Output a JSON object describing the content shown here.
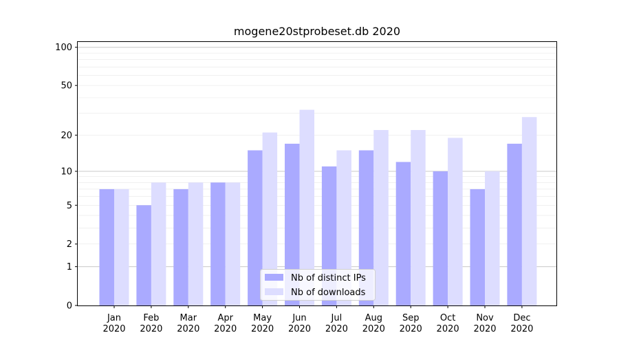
{
  "chart_data": {
    "type": "bar",
    "title": "mogene20stprobeset.db 2020",
    "xlabel": "",
    "ylabel": "",
    "yscale": "log1p",
    "ylim": [
      0,
      110
    ],
    "yticks": [
      0,
      1,
      2,
      5,
      10,
      20,
      50,
      100
    ],
    "grid": true,
    "legend": "bottom-center",
    "categories": [
      {
        "month": "Jan",
        "year": "2020"
      },
      {
        "month": "Feb",
        "year": "2020"
      },
      {
        "month": "Mar",
        "year": "2020"
      },
      {
        "month": "Apr",
        "year": "2020"
      },
      {
        "month": "May",
        "year": "2020"
      },
      {
        "month": "Jun",
        "year": "2020"
      },
      {
        "month": "Jul",
        "year": "2020"
      },
      {
        "month": "Aug",
        "year": "2020"
      },
      {
        "month": "Sep",
        "year": "2020"
      },
      {
        "month": "Oct",
        "year": "2020"
      },
      {
        "month": "Nov",
        "year": "2020"
      },
      {
        "month": "Dec",
        "year": "2020"
      }
    ],
    "series": [
      {
        "name": "Nb of distinct IPs",
        "color": "#aaaaff",
        "values": [
          7,
          5,
          7,
          8,
          15,
          17,
          11,
          15,
          12,
          10,
          7,
          17
        ]
      },
      {
        "name": "Nb of downloads",
        "color": "#ddddff",
        "values": [
          7,
          8,
          8,
          8,
          21,
          32,
          15,
          22,
          22,
          19,
          10,
          28
        ]
      }
    ]
  }
}
